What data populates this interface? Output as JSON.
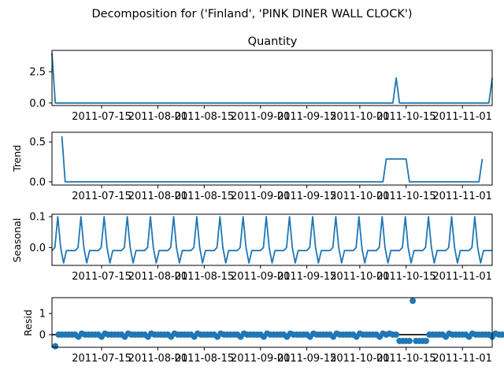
{
  "figure": {
    "suptitle": "Decomposition for ('Finland', 'PINK DINER WALL CLOCK')"
  },
  "chart_data": [
    {
      "type": "line",
      "title": "Quantity",
      "ylabel": "",
      "xlim": [
        "2011-06-30",
        "2011-11-10"
      ],
      "ylim": [
        -0.2,
        4.2
      ],
      "yticks": [
        0.0,
        2.5
      ],
      "ytick_labels": [
        "0.0",
        "2.5"
      ],
      "xticks": [
        "2011-07-15",
        "2011-08-01",
        "2011-08-15",
        "2011-09-01",
        "2011-09-15",
        "2011-10-01",
        "2011-10-15",
        "2011-11-01"
      ],
      "xtick_labels": [
        "2011-07-15",
        "2011-08-01",
        "2011-08-15",
        "2011-09-01",
        "2011-09-15",
        "2011-10-01",
        "2011-10-15",
        "2011-11-01"
      ],
      "x": [
        "2011-06-30",
        "2011-07-01",
        "2011-10-11",
        "2011-10-12",
        "2011-10-13",
        "2011-11-09",
        "2011-11-10"
      ],
      "values": [
        4,
        0,
        0,
        2,
        0,
        0,
        2
      ]
    },
    {
      "type": "line",
      "title": "",
      "ylabel": "Trend",
      "xlim": [
        "2011-06-30",
        "2011-11-10"
      ],
      "ylim": [
        -0.04,
        0.62
      ],
      "yticks": [
        0.0,
        0.5
      ],
      "ytick_labels": [
        "0.0",
        "0.5"
      ],
      "xticks": [
        "2011-07-15",
        "2011-08-01",
        "2011-08-15",
        "2011-09-01",
        "2011-09-15",
        "2011-10-01",
        "2011-10-15",
        "2011-11-01"
      ],
      "xtick_labels": [
        "2011-07-15",
        "2011-08-01",
        "2011-08-15",
        "2011-09-01",
        "2011-09-15",
        "2011-10-01",
        "2011-10-15",
        "2011-11-01"
      ],
      "x": [
        "2011-07-03",
        "2011-07-04",
        "2011-10-08",
        "2011-10-09",
        "2011-10-15",
        "2011-10-16",
        "2011-11-06",
        "2011-11-07"
      ],
      "values": [
        0.571,
        0,
        0,
        0.286,
        0.286,
        0,
        0,
        0.286
      ]
    },
    {
      "type": "line",
      "title": "",
      "ylabel": "Seasonal",
      "xlim": [
        "2011-06-30",
        "2011-11-10"
      ],
      "ylim": [
        -0.058,
        0.108
      ],
      "yticks": [
        0.0,
        0.1
      ],
      "ytick_labels": [
        "0.0",
        "0.1"
      ],
      "xticks": [
        "2011-07-15",
        "2011-08-01",
        "2011-08-15",
        "2011-09-01",
        "2011-09-15",
        "2011-10-01",
        "2011-10-15",
        "2011-11-01"
      ],
      "xtick_labels": [
        "2011-07-15",
        "2011-08-01",
        "2011-08-15",
        "2011-09-01",
        "2011-09-15",
        "2011-10-01",
        "2011-10-15",
        "2011-11-01"
      ],
      "start": "2011-06-30",
      "period_days": 7,
      "pattern": [
        -0.01,
        0.0,
        0.1,
        0.0,
        -0.05,
        -0.01,
        -0.01,
        -0.01,
        -0.01
      ]
    },
    {
      "type": "scatter",
      "title": "",
      "ylabel": "Resid",
      "xlim": [
        "2011-06-30",
        "2011-11-10"
      ],
      "ylim": [
        -0.6,
        1.75
      ],
      "yticks": [
        0,
        1
      ],
      "ytick_labels": [
        "0",
        "1"
      ],
      "xticks": [
        "2011-07-15",
        "2011-08-01",
        "2011-08-15",
        "2011-09-01",
        "2011-09-15",
        "2011-10-01",
        "2011-10-15",
        "2011-11-01"
      ],
      "xtick_labels": [
        "2011-07-15",
        "2011-08-01",
        "2011-08-15",
        "2011-09-01",
        "2011-09-15",
        "2011-10-01",
        "2011-10-15",
        "2011-11-01"
      ],
      "reference_line": 0,
      "start": "2011-07-01",
      "values": [
        -0.55,
        0.0,
        0.0,
        0.0,
        0.0,
        0.0,
        0.0,
        -0.1,
        0.05,
        0.0,
        0.0,
        0.0,
        0.0,
        0.0,
        -0.1,
        0.05,
        0.0,
        0.0,
        0.0,
        0.0,
        0.0,
        -0.1,
        0.05,
        0.0,
        0.0,
        0.0,
        0.0,
        0.0,
        -0.1,
        0.05,
        0.0,
        0.0,
        0.0,
        0.0,
        0.0,
        -0.1,
        0.05,
        0.0,
        0.0,
        0.0,
        0.0,
        0.0,
        -0.1,
        0.05,
        0.0,
        0.0,
        0.0,
        0.0,
        0.0,
        -0.1,
        0.05,
        0.0,
        0.0,
        0.0,
        0.0,
        0.0,
        -0.1,
        0.05,
        0.0,
        0.0,
        0.0,
        0.0,
        0.0,
        -0.1,
        0.05,
        0.0,
        0.0,
        0.0,
        0.0,
        0.0,
        -0.1,
        0.05,
        0.0,
        0.0,
        0.0,
        0.0,
        0.0,
        -0.1,
        0.05,
        0.0,
        0.0,
        0.0,
        0.0,
        0.0,
        -0.1,
        0.05,
        0.0,
        0.0,
        0.0,
        0.0,
        0.0,
        -0.1,
        0.05,
        0.0,
        0.0,
        0.0,
        0.0,
        0.0,
        -0.1,
        0.05,
        0.0,
        0.05,
        0.0,
        0.0,
        -0.3,
        -0.3,
        -0.3,
        -0.3,
        1.6,
        -0.3,
        -0.3,
        -0.3,
        -0.3,
        0.0,
        0.0,
        0.0,
        0.0,
        0.0,
        -0.1,
        0.05,
        0.0,
        0.0,
        0.0,
        0.0,
        0.0,
        -0.1,
        0.05,
        0.0,
        0.0,
        0.0,
        0.0,
        0.0,
        -0.1,
        0.05,
        0.0,
        0.0,
        0.0,
        0.0,
        0.0,
        -0.05,
        -0.15,
        -0.25
      ]
    }
  ]
}
